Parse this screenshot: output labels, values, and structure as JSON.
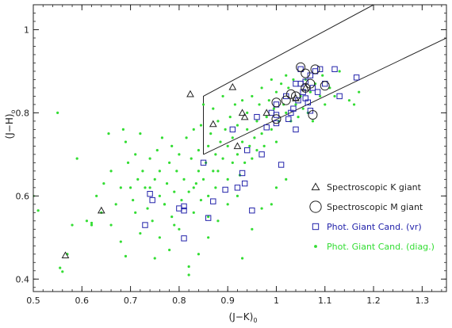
{
  "chart_data": {
    "type": "scatter",
    "xlabel": "(J−K)",
    "xlabel_sub": "0",
    "ylabel": "(J−H)",
    "ylabel_sub": "o",
    "xlim": [
      0.5,
      1.35
    ],
    "ylim": [
      0.37,
      1.06
    ],
    "xticks": [
      0.5,
      0.6,
      0.7,
      0.8,
      0.9,
      1.0,
      1.1,
      1.2,
      1.3
    ],
    "xtick_labels": [
      "0.5",
      "0.6",
      "0.7",
      "0.8",
      "0.9",
      "1",
      "1.1",
      "1.2",
      "1.3"
    ],
    "yticks": [
      0.4,
      0.6,
      0.8,
      1.0
    ],
    "ytick_labels": [
      "0.4",
      "0.6",
      "0.8",
      "1"
    ],
    "grid": false,
    "legend_position": "right",
    "selection_box": [
      [
        0.85,
        0.7
      ],
      [
        0.85,
        0.84
      ],
      [
        1.2,
        1.06
      ],
      [
        1.35,
        1.06
      ],
      [
        1.35,
        0.98
      ],
      [
        0.85,
        0.7
      ]
    ],
    "series": [
      {
        "name": "Spectroscopic K giant",
        "marker": "triangle",
        "color": "#222222",
        "points": [
          [
            0.566,
            0.457
          ],
          [
            0.64,
            0.565
          ],
          [
            0.823,
            0.845
          ],
          [
            0.87,
            0.773
          ],
          [
            0.91,
            0.862
          ],
          [
            0.92,
            0.72
          ],
          [
            0.93,
            0.8
          ],
          [
            0.935,
            0.79
          ],
          [
            0.98,
            0.8
          ],
          [
            1.04,
            0.835
          ],
          [
            1.06,
            0.86
          ]
        ]
      },
      {
        "name": "Spectroscopic M giant",
        "marker": "circle",
        "color": "#222222",
        "points": [
          [
            1.0,
            0.825
          ],
          [
            1.0,
            0.785
          ],
          [
            1.02,
            0.83
          ],
          [
            1.03,
            0.845
          ],
          [
            1.04,
            0.84
          ],
          [
            1.05,
            0.91
          ],
          [
            1.06,
            0.895
          ],
          [
            1.07,
            0.87
          ],
          [
            1.075,
            0.795
          ],
          [
            1.08,
            0.905
          ],
          [
            1.1,
            0.865
          ],
          [
            1.06,
            0.86
          ]
        ]
      },
      {
        "name": "Phot. Giant Cand. (vr)",
        "marker": "square",
        "color": "#2222aa",
        "points": [
          [
            0.73,
            0.53
          ],
          [
            0.74,
            0.605
          ],
          [
            0.745,
            0.59
          ],
          [
            0.8,
            0.57
          ],
          [
            0.81,
            0.575
          ],
          [
            0.81,
            0.565
          ],
          [
            0.81,
            0.498
          ],
          [
            0.85,
            0.68
          ],
          [
            0.86,
            0.547
          ],
          [
            0.87,
            0.587
          ],
          [
            0.895,
            0.615
          ],
          [
            0.91,
            0.76
          ],
          [
            0.92,
            0.62
          ],
          [
            0.93,
            0.655
          ],
          [
            0.935,
            0.63
          ],
          [
            0.94,
            0.71
          ],
          [
            0.95,
            0.565
          ],
          [
            0.96,
            0.79
          ],
          [
            0.97,
            0.7
          ],
          [
            0.98,
            0.765
          ],
          [
            0.99,
            0.8
          ],
          [
            1.0,
            0.82
          ],
          [
            1.0,
            0.795
          ],
          [
            1.01,
            0.675
          ],
          [
            1.02,
            0.84
          ],
          [
            1.025,
            0.785
          ],
          [
            1.03,
            0.8
          ],
          [
            1.035,
            0.81
          ],
          [
            1.04,
            0.87
          ],
          [
            1.045,
            0.83
          ],
          [
            1.05,
            0.905
          ],
          [
            1.05,
            0.87
          ],
          [
            1.055,
            0.85
          ],
          [
            1.06,
            0.875
          ],
          [
            1.06,
            0.835
          ],
          [
            1.065,
            0.825
          ],
          [
            1.07,
            0.89
          ],
          [
            1.075,
            0.86
          ],
          [
            1.08,
            0.9
          ],
          [
            1.085,
            0.85
          ],
          [
            1.09,
            0.905
          ],
          [
            1.1,
            0.87
          ],
          [
            1.12,
            0.905
          ],
          [
            1.13,
            0.84
          ],
          [
            1.165,
            0.885
          ],
          [
            1.04,
            0.76
          ],
          [
            1.07,
            0.805
          ],
          [
            1.0,
            0.775
          ]
        ]
      },
      {
        "name": "Phot. Giant Cand. (diag.)",
        "marker": "dot",
        "color": "#33dd33",
        "points": [
          [
            0.5,
            0.6
          ],
          [
            0.51,
            0.565
          ],
          [
            0.55,
            0.8
          ],
          [
            0.555,
            0.427
          ],
          [
            0.56,
            0.418
          ],
          [
            0.57,
            0.46
          ],
          [
            0.59,
            0.69
          ],
          [
            0.62,
            0.53
          ],
          [
            0.62,
            0.535
          ],
          [
            0.63,
            0.6
          ],
          [
            0.64,
            0.56
          ],
          [
            0.645,
            0.63
          ],
          [
            0.655,
            0.75
          ],
          [
            0.66,
            0.66
          ],
          [
            0.67,
            0.58
          ],
          [
            0.68,
            0.49
          ],
          [
            0.685,
            0.76
          ],
          [
            0.69,
            0.455
          ],
          [
            0.69,
            0.73
          ],
          [
            0.695,
            0.68
          ],
          [
            0.7,
            0.62
          ],
          [
            0.705,
            0.59
          ],
          [
            0.71,
            0.7
          ],
          [
            0.715,
            0.64
          ],
          [
            0.72,
            0.51
          ],
          [
            0.72,
            0.75
          ],
          [
            0.725,
            0.66
          ],
          [
            0.73,
            0.62
          ],
          [
            0.735,
            0.57
          ],
          [
            0.74,
            0.69
          ],
          [
            0.745,
            0.54
          ],
          [
            0.75,
            0.64
          ],
          [
            0.755,
            0.71
          ],
          [
            0.76,
            0.6
          ],
          [
            0.76,
            0.66
          ],
          [
            0.765,
            0.74
          ],
          [
            0.77,
            0.58
          ],
          [
            0.775,
            0.63
          ],
          [
            0.78,
            0.68
          ],
          [
            0.785,
            0.55
          ],
          [
            0.785,
            0.72
          ],
          [
            0.79,
            0.61
          ],
          [
            0.795,
            0.66
          ],
          [
            0.8,
            0.7
          ],
          [
            0.8,
            0.52
          ],
          [
            0.805,
            0.59
          ],
          [
            0.81,
            0.64
          ],
          [
            0.815,
            0.74
          ],
          [
            0.82,
            0.61
          ],
          [
            0.82,
            0.43
          ],
          [
            0.825,
            0.69
          ],
          [
            0.83,
            0.56
          ],
          [
            0.83,
            0.76
          ],
          [
            0.835,
            0.63
          ],
          [
            0.84,
            0.66
          ],
          [
            0.84,
            0.71
          ],
          [
            0.845,
            0.59
          ],
          [
            0.845,
            0.77
          ],
          [
            0.85,
            0.64
          ],
          [
            0.85,
            0.82
          ],
          [
            0.855,
            0.68
          ],
          [
            0.86,
            0.72
          ],
          [
            0.86,
            0.6
          ],
          [
            0.865,
            0.75
          ],
          [
            0.87,
            0.66
          ],
          [
            0.87,
            0.81
          ],
          [
            0.875,
            0.7
          ],
          [
            0.875,
            0.62
          ],
          [
            0.88,
            0.78
          ],
          [
            0.88,
            0.66
          ],
          [
            0.885,
            0.73
          ],
          [
            0.89,
            0.69
          ],
          [
            0.89,
            0.84
          ],
          [
            0.895,
            0.76
          ],
          [
            0.9,
            0.64
          ],
          [
            0.9,
            0.72
          ],
          [
            0.905,
            0.79
          ],
          [
            0.91,
            0.68
          ],
          [
            0.91,
            0.74
          ],
          [
            0.915,
            0.82
          ],
          [
            0.92,
            0.7
          ],
          [
            0.92,
            0.77
          ],
          [
            0.925,
            0.65
          ],
          [
            0.93,
            0.73
          ],
          [
            0.93,
            0.83
          ],
          [
            0.935,
            0.68
          ],
          [
            0.94,
            0.76
          ],
          [
            0.94,
            0.8
          ],
          [
            0.945,
            0.72
          ],
          [
            0.95,
            0.69
          ],
          [
            0.95,
            0.84
          ],
          [
            0.955,
            0.74
          ],
          [
            0.96,
            0.78
          ],
          [
            0.96,
            0.71
          ],
          [
            0.965,
            0.82
          ],
          [
            0.97,
            0.75
          ],
          [
            0.97,
            0.86
          ],
          [
            0.975,
            0.72
          ],
          [
            0.98,
            0.79
          ],
          [
            0.985,
            0.83
          ],
          [
            0.99,
            0.76
          ],
          [
            0.99,
            0.88
          ],
          [
            0.995,
            0.81
          ],
          [
            1.0,
            0.85
          ],
          [
            1.0,
            0.73
          ],
          [
            1.005,
            0.78
          ],
          [
            1.01,
            0.87
          ],
          [
            1.015,
            0.82
          ],
          [
            1.02,
            0.8
          ],
          [
            1.02,
            0.89
          ],
          [
            1.025,
            0.86
          ],
          [
            1.03,
            0.78
          ],
          [
            1.035,
            0.88
          ],
          [
            1.04,
            0.82
          ],
          [
            1.045,
            0.79
          ],
          [
            1.05,
            0.84
          ],
          [
            1.055,
            0.81
          ],
          [
            1.06,
            0.88
          ],
          [
            1.065,
            0.8
          ],
          [
            1.07,
            0.85
          ],
          [
            1.075,
            0.78
          ],
          [
            1.08,
            0.87
          ],
          [
            1.09,
            0.84
          ],
          [
            1.095,
            0.89
          ],
          [
            1.1,
            0.82
          ],
          [
            1.11,
            0.86
          ],
          [
            1.12,
            0.84
          ],
          [
            1.13,
            0.9
          ],
          [
            1.15,
            0.83
          ],
          [
            1.16,
            0.82
          ],
          [
            1.17,
            0.85
          ],
          [
            0.93,
            0.45
          ],
          [
            0.95,
            0.52
          ],
          [
            0.97,
            0.57
          ],
          [
            1.0,
            0.62
          ],
          [
            1.02,
            0.64
          ],
          [
            0.99,
            0.58
          ],
          [
            0.82,
            0.41
          ],
          [
            0.84,
            0.46
          ],
          [
            0.86,
            0.5
          ],
          [
            0.78,
            0.47
          ],
          [
            0.76,
            0.5
          ],
          [
            0.88,
            0.54
          ],
          [
            0.9,
            0.58
          ],
          [
            0.92,
            0.6
          ],
          [
            0.75,
            0.45
          ],
          [
            0.58,
            0.53
          ],
          [
            0.61,
            0.54
          ],
          [
            0.66,
            0.53
          ],
          [
            0.68,
            0.62
          ],
          [
            0.71,
            0.56
          ],
          [
            0.74,
            0.62
          ],
          [
            0.77,
            0.58
          ],
          [
            0.79,
            0.53
          ],
          [
            0.83,
            0.62
          ],
          [
            0.86,
            0.55
          ]
        ]
      }
    ]
  }
}
